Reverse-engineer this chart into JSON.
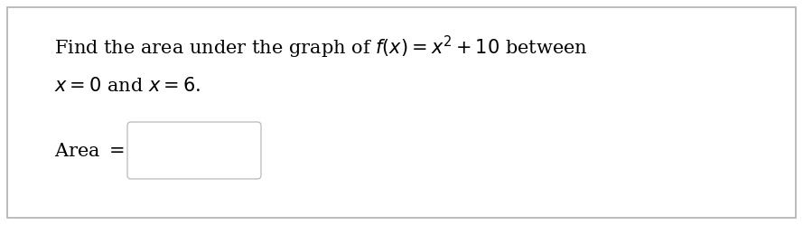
{
  "line1": "Find the area under the graph of $f(x) = x^2 + 10$ between",
  "line2": "$x = 0$ and $x = 6$.",
  "label": "Area $=$",
  "bg_color": "#ffffff",
  "border_color": "#b0b0b0",
  "text_color": "#000000",
  "box_border_color": "#c0c0c0",
  "font_size": 15,
  "label_font_size": 15,
  "fig_width": 8.89,
  "fig_height": 2.49,
  "dpi": 100
}
